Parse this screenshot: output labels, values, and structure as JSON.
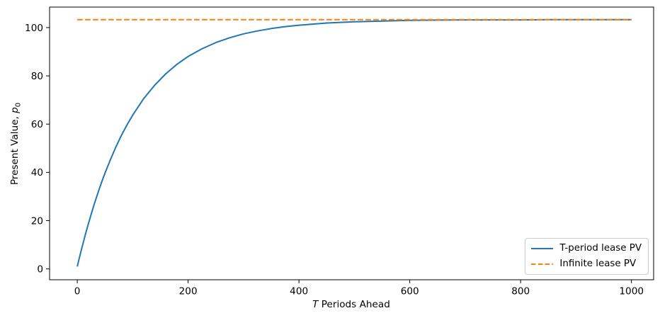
{
  "chart_data": {
    "type": "line",
    "title": "",
    "xlabel": {
      "math_italic": "T",
      "text_after_math": " Periods Ahead"
    },
    "ylabel": {
      "text_before_math": "Present Value, ",
      "math_italic": "p",
      "math_subscript": "0"
    },
    "xlim": [
      -50,
      1040
    ],
    "ylim": [
      -4.5,
      108.5
    ],
    "xticks": [
      0,
      200,
      400,
      600,
      800,
      1000
    ],
    "yticks": [
      0,
      20,
      40,
      60,
      80,
      100
    ],
    "grid": false,
    "legend": {
      "position": "lower right"
    },
    "axis_color": "#000000",
    "x": [
      0,
      5,
      10,
      15,
      20,
      25,
      30,
      35,
      40,
      45,
      50,
      60,
      70,
      80,
      90,
      100,
      120,
      140,
      160,
      180,
      200,
      225,
      250,
      275,
      300,
      325,
      350,
      375,
      400,
      450,
      500,
      550,
      600,
      650,
      700,
      750,
      800,
      850,
      900,
      950,
      1000
    ],
    "series": [
      {
        "name": "T-period lease PV",
        "color": "#1f77b4",
        "line_style": "solid",
        "values": [
          1.0,
          5.7,
          10.3,
          14.6,
          18.7,
          22.6,
          26.4,
          29.9,
          33.3,
          36.6,
          39.7,
          45.4,
          50.7,
          55.5,
          59.8,
          63.7,
          70.6,
          76.2,
          80.9,
          84.8,
          88.0,
          91.2,
          93.8,
          95.8,
          97.4,
          98.6,
          99.6,
          100.4,
          101.0,
          101.9,
          102.4,
          102.7,
          103.0,
          103.1,
          103.2,
          103.2,
          103.2,
          103.3,
          103.3,
          103.3,
          103.3
        ]
      },
      {
        "name": "Infinite lease PV",
        "color": "#ff7f0e",
        "line_style": "dashed",
        "constant_value": 103.3,
        "x_range": [
          0,
          1000
        ]
      }
    ]
  }
}
